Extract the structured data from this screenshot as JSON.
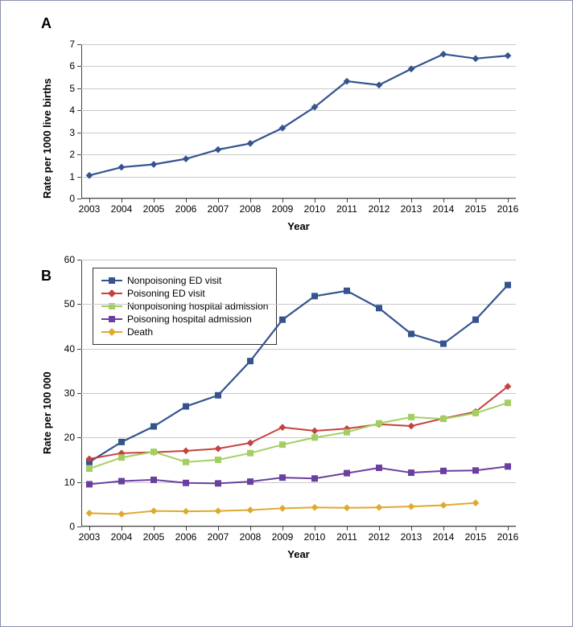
{
  "chartA": {
    "panel_label": "A",
    "type": "line",
    "ylabel": "Rate per 1000 live births",
    "xlabel": "Year",
    "years": [
      2003,
      2004,
      2005,
      2006,
      2007,
      2008,
      2009,
      2010,
      2011,
      2012,
      2013,
      2014,
      2015,
      2016
    ],
    "values": [
      1.05,
      1.42,
      1.55,
      1.8,
      2.22,
      2.5,
      3.2,
      4.15,
      5.32,
      5.15,
      5.88,
      6.55,
      6.35,
      6.48
    ],
    "ylim": [
      0,
      7
    ],
    "ytick_step": 1,
    "line_color": "#35548f",
    "line_width": 2.2,
    "marker": "diamond",
    "marker_size": 7,
    "grid_color": "#c9c9c9",
    "background_color": "#ffffff",
    "label_fontsize": 13,
    "tick_fontsize": 12
  },
  "chartB": {
    "panel_label": "B",
    "type": "line",
    "ylabel": "Rate per 100 000",
    "xlabel": "Year",
    "years": [
      2003,
      2004,
      2005,
      2006,
      2007,
      2008,
      2009,
      2010,
      2011,
      2012,
      2013,
      2014,
      2015,
      2016
    ],
    "ylim": [
      0,
      60
    ],
    "ytick_step": 10,
    "grid_color": "#c9c9c9",
    "background_color": "#ffffff",
    "label_fontsize": 13,
    "tick_fontsize": 12,
    "legend_position": "top-left-inside",
    "series": [
      {
        "key": "nonpoison_ed",
        "label": "Nonpoisoning ED visit",
        "color": "#35548f",
        "marker": "square",
        "marker_size": 8,
        "line_width": 2.2,
        "values": [
          14.5,
          19.0,
          22.5,
          27.0,
          29.5,
          37.2,
          46.5,
          51.8,
          53.0,
          49.1,
          43.3,
          41.1,
          46.5,
          54.3
        ]
      },
      {
        "key": "poison_ed",
        "label": "Poisoning ED visit",
        "color": "#c6403e",
        "marker": "diamond",
        "marker_size": 7,
        "line_width": 2.0,
        "values": [
          15.2,
          16.5,
          16.7,
          17.0,
          17.5,
          18.8,
          22.3,
          21.5,
          22.0,
          23.0,
          22.6,
          24.3,
          25.8,
          31.5
        ]
      },
      {
        "key": "nonpoison_hosp",
        "label": "Nonpoisoning hospital admission",
        "color": "#a3cf62",
        "marker": "square",
        "marker_size": 8,
        "line_width": 2.0,
        "values": [
          13.0,
          15.5,
          16.8,
          14.5,
          15.0,
          16.5,
          18.4,
          20.0,
          21.2,
          23.2,
          24.6,
          24.2,
          25.5,
          27.8
        ]
      },
      {
        "key": "poison_hosp",
        "label": "Poisoning hospital admission",
        "color": "#6b3fa0",
        "marker": "square",
        "marker_size": 8,
        "line_width": 2.0,
        "values": [
          9.5,
          10.2,
          10.5,
          9.8,
          9.7,
          10.1,
          11.0,
          10.8,
          12.0,
          13.2,
          12.1,
          12.5,
          12.6,
          13.5
        ]
      },
      {
        "key": "death",
        "label": "Death",
        "color": "#e0a92e",
        "marker": "diamond",
        "marker_size": 7,
        "line_width": 2.0,
        "values": [
          3.0,
          2.8,
          3.5,
          3.4,
          3.5,
          3.7,
          4.1,
          4.3,
          4.2,
          4.3,
          4.5,
          4.8,
          5.3,
          null
        ]
      }
    ]
  }
}
